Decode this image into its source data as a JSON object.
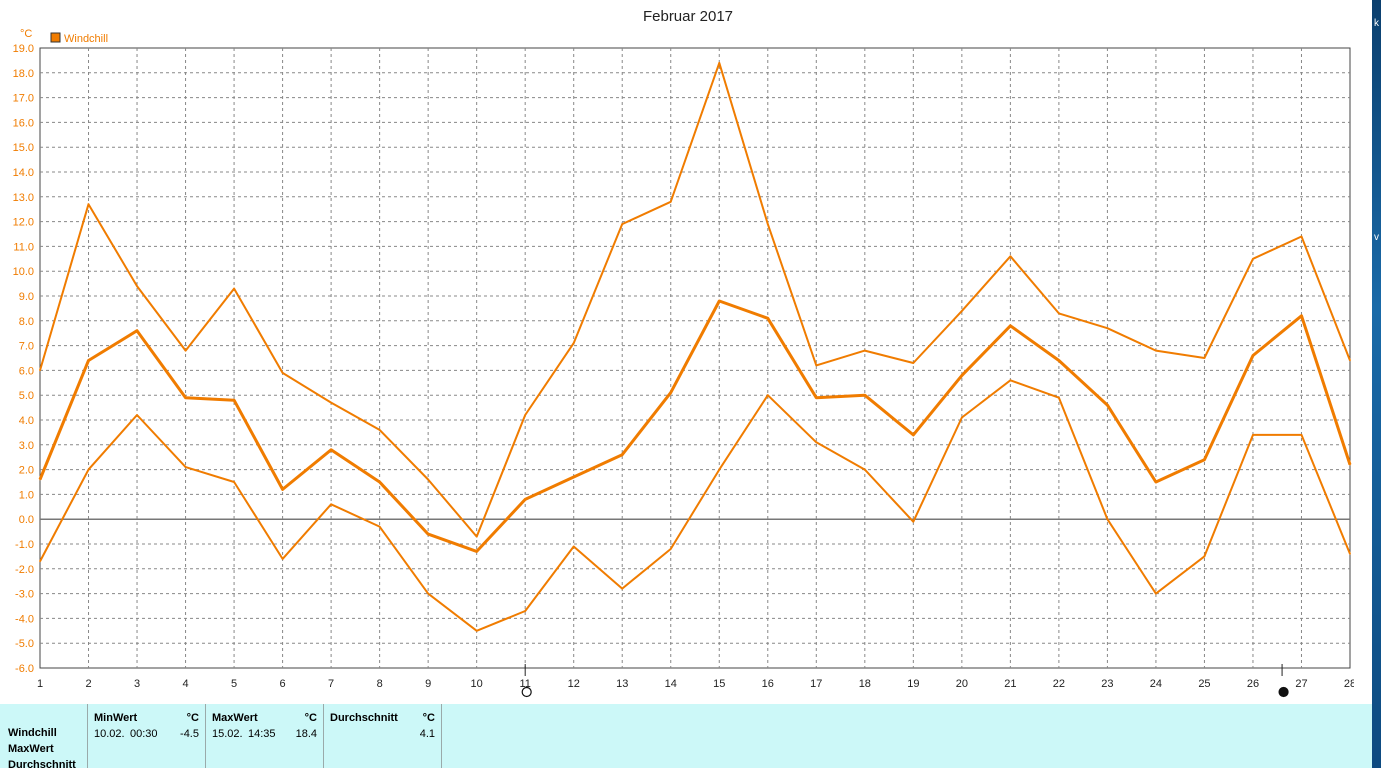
{
  "window": {
    "title": "Februar 2017"
  },
  "chart_data": {
    "type": "line",
    "title": "Februar 2017",
    "ylabel": "°C",
    "legend": [
      {
        "label": "Windchill",
        "color": "#f07c00"
      }
    ],
    "legend_position": "top-left",
    "x": [
      1,
      2,
      3,
      4,
      5,
      6,
      7,
      8,
      9,
      10,
      11,
      12,
      13,
      14,
      15,
      16,
      17,
      18,
      19,
      20,
      21,
      22,
      23,
      24,
      25,
      26,
      27,
      28
    ],
    "ylim": [
      -6.0,
      19.0
    ],
    "yticks": [
      19.0,
      18.0,
      17.0,
      16.0,
      15.0,
      14.0,
      13.0,
      12.0,
      11.0,
      10.0,
      9.0,
      8.0,
      7.0,
      6.0,
      5.0,
      4.0,
      3.0,
      2.0,
      1.0,
      0.0,
      -1.0,
      -2.0,
      -3.0,
      -4.0,
      -5.0,
      -6.0
    ],
    "ytick_labels": [
      "19.0",
      "18.0",
      "17.0",
      "16.0",
      "15.0",
      "14.0",
      "13.0",
      "12.0",
      "11.0",
      "10.0",
      "9.0",
      "8.0",
      "7.0",
      "6.0",
      "5.0",
      "4.0",
      "3.0",
      "2.0",
      "1.0",
      "0.0",
      "-1.0",
      "-2.0",
      "-3.0",
      "-4.0",
      "-5.0",
      "-6.0"
    ],
    "grid": true,
    "series": [
      {
        "name": "Windchill MaxWert",
        "role": "max",
        "color": "#f07c00",
        "values": [
          6.0,
          12.7,
          9.4,
          6.8,
          9.3,
          5.9,
          4.7,
          3.6,
          1.6,
          -0.7,
          4.2,
          7.1,
          11.9,
          12.8,
          18.4,
          11.9,
          6.2,
          6.8,
          6.3,
          8.4,
          10.6,
          8.3,
          7.7,
          6.8,
          6.5,
          10.5,
          11.4,
          6.4
        ]
      },
      {
        "name": "Windchill",
        "role": "avg",
        "color": "#f07c00",
        "values": [
          1.6,
          6.4,
          7.6,
          4.9,
          4.8,
          1.2,
          2.8,
          1.5,
          -0.6,
          -1.3,
          0.8,
          1.7,
          2.6,
          5.1,
          8.8,
          8.1,
          4.9,
          5.0,
          3.4,
          5.8,
          7.8,
          6.4,
          4.6,
          1.5,
          2.4,
          6.6,
          8.2,
          2.2
        ]
      },
      {
        "name": "Windchill MinWert",
        "role": "min",
        "color": "#f07c00",
        "values": [
          -1.7,
          2.0,
          4.2,
          2.1,
          1.5,
          -1.6,
          0.6,
          -0.3,
          -3.0,
          -4.5,
          -3.7,
          -1.1,
          -2.8,
          -1.2,
          2.0,
          5.0,
          3.1,
          2.0,
          -0.1,
          4.1,
          5.6,
          4.9,
          0.0,
          -3.0,
          -1.5,
          3.4,
          3.4,
          -1.4
        ]
      }
    ],
    "moon_phases": [
      {
        "day": 11,
        "phase": "full-moon"
      },
      {
        "day": 26.6,
        "phase": "new-moon"
      }
    ]
  },
  "stats": {
    "row_labels": [
      "Windchill",
      "MaxWert",
      "Durchschnitt"
    ],
    "columns": [
      {
        "header": "MinWert",
        "unit": "°C",
        "date": "10.02.",
        "time": "00:30",
        "value": "-4.5"
      },
      {
        "header": "MaxWert",
        "unit": "°C",
        "date": "15.02.",
        "time": "14:35",
        "value": "18.4"
      },
      {
        "header": "Durchschnitt",
        "unit": "°C",
        "date": "",
        "time": "",
        "value": "4.1"
      }
    ]
  },
  "desktop": {
    "fragments": [
      "k",
      "v"
    ]
  }
}
